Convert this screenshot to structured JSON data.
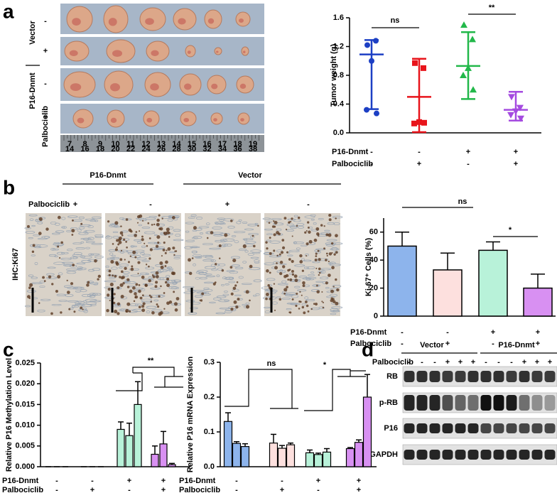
{
  "panels": {
    "a": {
      "letter": "a",
      "rows": [
        {
          "label": "Vector",
          "signs": [
            "-",
            "+"
          ]
        },
        {
          "label": "P16-Dnmt",
          "signs": [
            "-",
            "+"
          ]
        }
      ],
      "treatment": "Palbociclib",
      "ruler": {
        "top": [
          7,
          8,
          9,
          10,
          11,
          12,
          13,
          14,
          15,
          16,
          17,
          18,
          19
        ],
        "bottom": [
          14,
          16,
          18,
          20,
          22,
          24,
          26,
          28,
          30,
          32,
          34,
          36,
          38
        ]
      }
    },
    "b": {
      "letter": "b",
      "groups": [
        "P16-Dnmt",
        "Vector"
      ],
      "treatment": "Palbociclib",
      "signs": [
        "+",
        "-",
        "+",
        "-"
      ],
      "stain": "IHC:Ki67"
    },
    "c": {
      "letter": "c"
    },
    "d": {
      "letter": "d",
      "groups": [
        "Vector",
        "P16-Dnmt"
      ],
      "treatment": "Palbociclib",
      "signs": [
        "-",
        "-",
        "-",
        "+",
        "+",
        "+",
        "-",
        "-",
        "-",
        "+",
        "+",
        "+"
      ],
      "rows": [
        "RB",
        "p-RB",
        "P16",
        "GAPDH"
      ]
    }
  },
  "chart_data": [
    {
      "type": "dot",
      "ylabel": "Tumor weight (g)",
      "ylim": [
        0,
        1.6
      ],
      "yticks": [
        {
          "value": 0,
          "label": "0.0"
        },
        0.4,
        0.8,
        1.2,
        1.6
      ],
      "groups": [
        {
          "color": "#1c3fc4",
          "marker": "circle",
          "points": [
            1.22,
            1.28,
            1.0,
            0.32,
            0.27
          ],
          "mean": 1.09,
          "upper": 1.29,
          "lower": 0.33
        },
        {
          "color": "#e8141b",
          "marker": "square",
          "points": [
            0.97,
            0.9,
            0.15,
            0.13,
            0.14
          ],
          "mean": 0.5,
          "upper": 1.03,
          "lower": 0.01
        },
        {
          "color": "#22b84a",
          "marker": "triangle",
          "points": [
            1.5,
            1.3,
            0.9,
            0.8,
            0.6
          ],
          "mean": 0.93,
          "upper": 1.4,
          "lower": 0.47
        },
        {
          "color": "#a54be0",
          "marker": "triangle-down",
          "points": [
            0.5,
            0.35,
            0.3,
            0.25,
            0.2
          ],
          "mean": 0.32,
          "upper": 0.57,
          "lower": 0.17
        }
      ],
      "annotations": [
        "ns",
        "**"
      ],
      "conditions": [
        {
          "label": "P16-Dnmt",
          "signs": [
            "-",
            "-",
            "+",
            "+"
          ]
        },
        {
          "label": "Palbociclib",
          "signs": [
            "-",
            "+",
            "-",
            "+"
          ]
        }
      ]
    },
    {
      "type": "bar",
      "ylabel": "Ki-67⁺ Cells (%)",
      "ylim": [
        0,
        70
      ],
      "yticks": [
        0,
        20,
        40,
        60
      ],
      "values": [
        50,
        33,
        47,
        20
      ],
      "errors": [
        10,
        12,
        6,
        10
      ],
      "colors": [
        "#8db4ec",
        "#fde0de",
        "#b8f2d9",
        "#d890f2"
      ],
      "annotations": [
        "ns",
        "*"
      ],
      "conditions": [
        {
          "label": "P16-Dnmt",
          "signs": [
            "-",
            "-",
            "+",
            "+"
          ]
        },
        {
          "label": "Palbociclib",
          "signs": [
            "-",
            "+",
            "-",
            "+"
          ]
        }
      ]
    },
    {
      "type": "grouped-bar",
      "ylabel": "Relative P16 Methylation Level",
      "ylim": [
        0,
        0.025
      ],
      "yticks": [
        {
          "value": 0,
          "label": "0.000"
        },
        0.005,
        {
          "value": 0.01,
          "label": "0.010"
        },
        0.015,
        {
          "value": 0.02,
          "label": "0.020"
        },
        0.025
      ],
      "groups": [
        {
          "color": "#8db4ec",
          "values": [
            0,
            0,
            0
          ],
          "errors": [
            0,
            0,
            0
          ]
        },
        {
          "color": "#fde0de",
          "values": [
            0,
            0,
            0
          ],
          "errors": [
            0,
            0,
            0
          ]
        },
        {
          "color": "#b8f2d9",
          "values": [
            0.009,
            0.0075,
            0.015
          ],
          "errors": [
            0.0018,
            0.003,
            0.0055
          ]
        },
        {
          "color": "#d890f2",
          "values": [
            0.003,
            0.0055,
            0.0005
          ],
          "errors": [
            0.002,
            0.003,
            0.0003
          ]
        }
      ],
      "annotations": [
        "**"
      ],
      "conditions": [
        {
          "label": "P16-Dnmt",
          "signs": [
            "-",
            "-",
            "+",
            "+"
          ]
        },
        {
          "label": "Palbociclib",
          "signs": [
            "-",
            "+",
            "-",
            "+"
          ]
        }
      ]
    },
    {
      "type": "grouped-bar",
      "ylabel": "Relative P16 mRNA Expression",
      "ylim": [
        0,
        0.3
      ],
      "yticks": [
        {
          "value": 0,
          "label": "0.0"
        },
        0.1,
        0.2,
        0.3
      ],
      "groups": [
        {
          "color": "#8db4ec",
          "values": [
            0.13,
            0.067,
            0.058
          ],
          "errors": [
            0.025,
            0.005,
            0.008
          ]
        },
        {
          "color": "#fde0de",
          "values": [
            0.068,
            0.053,
            0.063
          ],
          "errors": [
            0.025,
            0.008,
            0.005
          ]
        },
        {
          "color": "#b8f2d9",
          "values": [
            0.04,
            0.035,
            0.042
          ],
          "errors": [
            0.008,
            0.004,
            0.01
          ]
        },
        {
          "color": "#d890f2",
          "values": [
            0.052,
            0.07,
            0.2
          ],
          "errors": [
            0.003,
            0.007,
            0.065
          ]
        }
      ],
      "annotations": [
        "ns",
        "*"
      ],
      "conditions": [
        {
          "label": "P16-Dnmt",
          "signs": [
            "-",
            "-",
            "+",
            "+"
          ]
        },
        {
          "label": "Palbociclib",
          "signs": [
            "-",
            "+",
            "-",
            "+"
          ]
        }
      ]
    }
  ]
}
